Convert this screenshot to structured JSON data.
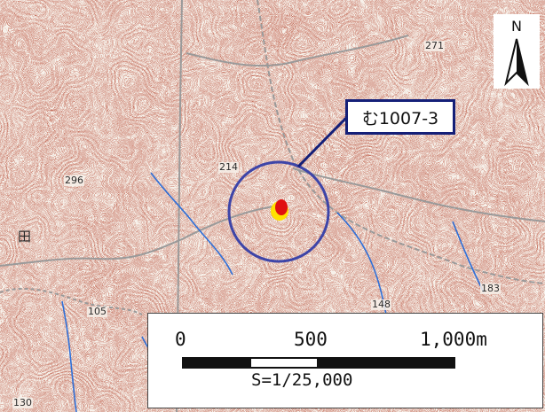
{
  "map": {
    "north_label": "N",
    "site_label": "む1007-3",
    "elevations": [
      "271",
      "296",
      "214",
      "183",
      "148",
      "105",
      "130"
    ],
    "kanji": [
      "田"
    ]
  },
  "scale": {
    "ticks": [
      "0",
      "500",
      "1,000m"
    ],
    "ratio": "S=1/25,000"
  },
  "colors": {
    "contour": "#8b2a1c",
    "stream": "#2e6fd8",
    "road": "#9a9a9a",
    "circle": "#3e45a8",
    "callout_border": "#141f78",
    "site_fill": "#e01010",
    "site_halo": "#ffe000"
  }
}
